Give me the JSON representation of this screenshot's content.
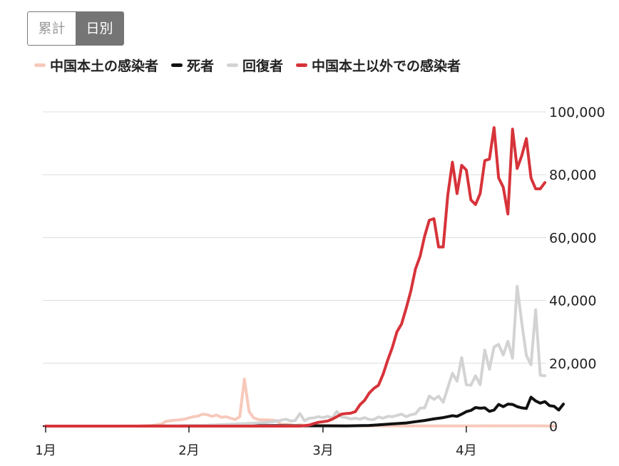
{
  "toggle": {
    "cumulative_label": "累計",
    "daily_label": "日別",
    "selected": "daily"
  },
  "legend": [
    {
      "label": "中国本土の感染者",
      "color": "#f7c9bb"
    },
    {
      "label": "死者",
      "color": "#111111"
    },
    {
      "label": "回復者",
      "color": "#d3d3d3"
    },
    {
      "label": "中国本土以外での感染者",
      "color": "#d7333a"
    }
  ],
  "chart_data": {
    "type": "line",
    "title": "",
    "xlabel": "",
    "ylabel": "",
    "ylim": [
      0,
      100000
    ],
    "yticks": [
      0,
      20000,
      40000,
      60000,
      80000,
      100000
    ],
    "ytick_labels": [
      "0",
      "20,000",
      "40,000",
      "60,000",
      "80,000",
      "100,000"
    ],
    "xticks": [
      {
        "day": 0,
        "label": "1月"
      },
      {
        "day": 31,
        "label": "2月"
      },
      {
        "day": 60,
        "label": "3月"
      },
      {
        "day": 91,
        "label": "4月"
      }
    ],
    "x_unit": "days from Jan 1",
    "grid": true,
    "series": [
      {
        "name": "中国本土の感染者",
        "color": "#f7c9bb",
        "points": [
          [
            0,
            0
          ],
          [
            15,
            0
          ],
          [
            20,
            50
          ],
          [
            23,
            200
          ],
          [
            24,
            400
          ],
          [
            25,
            600
          ],
          [
            26,
            1500
          ],
          [
            27,
            1700
          ],
          [
            28,
            1900
          ],
          [
            29,
            2000
          ],
          [
            30,
            2200
          ],
          [
            31,
            2600
          ],
          [
            32,
            3000
          ],
          [
            33,
            3200
          ],
          [
            34,
            3800
          ],
          [
            35,
            3600
          ],
          [
            36,
            3100
          ],
          [
            37,
            3500
          ],
          [
            38,
            2800
          ],
          [
            39,
            3000
          ],
          [
            40,
            2500
          ],
          [
            41,
            2100
          ],
          [
            42,
            3000
          ],
          [
            43,
            15000
          ],
          [
            44,
            4700
          ],
          [
            45,
            2600
          ],
          [
            46,
            2100
          ],
          [
            47,
            2000
          ],
          [
            48,
            2000
          ],
          [
            49,
            1900
          ],
          [
            50,
            1700
          ],
          [
            51,
            500
          ],
          [
            52,
            600
          ],
          [
            53,
            400
          ],
          [
            54,
            200
          ],
          [
            55,
            400
          ],
          [
            56,
            300
          ],
          [
            57,
            400
          ],
          [
            58,
            200
          ],
          [
            59,
            200
          ],
          [
            60,
            200
          ],
          [
            65,
            100
          ],
          [
            75,
            60
          ],
          [
            90,
            40
          ],
          [
            105,
            80
          ],
          [
            110,
            30
          ]
        ]
      },
      {
        "name": "死者",
        "color": "#111111",
        "points": [
          [
            0,
            0
          ],
          [
            20,
            0
          ],
          [
            25,
            30
          ],
          [
            30,
            60
          ],
          [
            35,
            80
          ],
          [
            40,
            100
          ],
          [
            45,
            120
          ],
          [
            50,
            130
          ],
          [
            55,
            100
          ],
          [
            60,
            80
          ],
          [
            65,
            60
          ],
          [
            70,
            200
          ],
          [
            72,
            400
          ],
          [
            75,
            700
          ],
          [
            78,
            1000
          ],
          [
            80,
            1400
          ],
          [
            82,
            1800
          ],
          [
            84,
            2300
          ],
          [
            86,
            2700
          ],
          [
            88,
            3300
          ],
          [
            89,
            3100
          ],
          [
            90,
            3800
          ],
          [
            91,
            4600
          ],
          [
            92,
            5000
          ],
          [
            93,
            5900
          ],
          [
            94,
            5700
          ],
          [
            95,
            5800
          ],
          [
            96,
            4700
          ],
          [
            97,
            5100
          ],
          [
            98,
            6900
          ],
          [
            99,
            6200
          ],
          [
            100,
            7000
          ],
          [
            101,
            6900
          ],
          [
            102,
            6200
          ],
          [
            103,
            5800
          ],
          [
            104,
            5600
          ],
          [
            105,
            9200
          ],
          [
            106,
            8000
          ],
          [
            107,
            7300
          ],
          [
            108,
            7800
          ],
          [
            109,
            6500
          ],
          [
            110,
            6300
          ],
          [
            111,
            5100
          ],
          [
            112,
            7000
          ]
        ]
      },
      {
        "name": "回復者",
        "color": "#d3d3d3",
        "points": [
          [
            0,
            0
          ],
          [
            25,
            0
          ],
          [
            30,
            200
          ],
          [
            35,
            300
          ],
          [
            40,
            600
          ],
          [
            45,
            900
          ],
          [
            48,
            1200
          ],
          [
            50,
            1600
          ],
          [
            52,
            2200
          ],
          [
            53,
            1600
          ],
          [
            54,
            1800
          ],
          [
            55,
            4000
          ],
          [
            56,
            1700
          ],
          [
            57,
            2500
          ],
          [
            58,
            2600
          ],
          [
            59,
            3000
          ],
          [
            60,
            2700
          ],
          [
            61,
            3100
          ],
          [
            62,
            2600
          ],
          [
            63,
            4700
          ],
          [
            64,
            2900
          ],
          [
            65,
            2700
          ],
          [
            66,
            2300
          ],
          [
            67,
            2500
          ],
          [
            68,
            2200
          ],
          [
            69,
            2700
          ],
          [
            70,
            2100
          ],
          [
            71,
            2100
          ],
          [
            72,
            2900
          ],
          [
            73,
            2500
          ],
          [
            74,
            3100
          ],
          [
            75,
            3000
          ],
          [
            76,
            3400
          ],
          [
            77,
            3800
          ],
          [
            78,
            3000
          ],
          [
            79,
            3600
          ],
          [
            80,
            3900
          ],
          [
            81,
            5700
          ],
          [
            82,
            5800
          ],
          [
            83,
            9600
          ],
          [
            84,
            8500
          ],
          [
            85,
            9500
          ],
          [
            86,
            7600
          ],
          [
            87,
            12200
          ],
          [
            88,
            16800
          ],
          [
            89,
            14300
          ],
          [
            90,
            21800
          ],
          [
            91,
            13200
          ],
          [
            92,
            13000
          ],
          [
            93,
            16000
          ],
          [
            94,
            13200
          ],
          [
            95,
            24200
          ],
          [
            96,
            18100
          ],
          [
            97,
            25200
          ],
          [
            98,
            26000
          ],
          [
            99,
            22600
          ],
          [
            100,
            27000
          ],
          [
            101,
            21600
          ],
          [
            102,
            44500
          ],
          [
            103,
            33000
          ],
          [
            104,
            22500
          ],
          [
            105,
            19500
          ],
          [
            106,
            37000
          ],
          [
            107,
            16200
          ],
          [
            108,
            16000
          ]
        ]
      },
      {
        "name": "中国本土以外での感染者",
        "color": "#d7333a",
        "points": [
          [
            0,
            0
          ],
          [
            55,
            0
          ],
          [
            57,
            300
          ],
          [
            58,
            800
          ],
          [
            59,
            1200
          ],
          [
            60,
            1400
          ],
          [
            61,
            1600
          ],
          [
            62,
            2200
          ],
          [
            63,
            3000
          ],
          [
            64,
            3800
          ],
          [
            65,
            4000
          ],
          [
            66,
            4100
          ],
          [
            67,
            4600
          ],
          [
            68,
            6800
          ],
          [
            69,
            8200
          ],
          [
            70,
            10500
          ],
          [
            71,
            12000
          ],
          [
            72,
            13000
          ],
          [
            73,
            16500
          ],
          [
            74,
            21000
          ],
          [
            75,
            25000
          ],
          [
            76,
            30000
          ],
          [
            77,
            32500
          ],
          [
            78,
            37500
          ],
          [
            79,
            43000
          ],
          [
            80,
            50000
          ],
          [
            81,
            54000
          ],
          [
            82,
            60500
          ],
          [
            83,
            65500
          ],
          [
            84,
            66000
          ],
          [
            85,
            57000
          ],
          [
            86,
            57000
          ],
          [
            87,
            73500
          ],
          [
            88,
            84000
          ],
          [
            89,
            74000
          ],
          [
            90,
            83000
          ],
          [
            91,
            81500
          ],
          [
            92,
            72000
          ],
          [
            93,
            70500
          ],
          [
            94,
            74000
          ],
          [
            95,
            84500
          ],
          [
            96,
            85000
          ],
          [
            97,
            95000
          ],
          [
            98,
            79000
          ],
          [
            99,
            76000
          ],
          [
            100,
            67500
          ],
          [
            101,
            94500
          ],
          [
            102,
            82000
          ],
          [
            103,
            86000
          ],
          [
            104,
            91500
          ],
          [
            105,
            79000
          ],
          [
            106,
            75500
          ],
          [
            107,
            75500
          ],
          [
            108,
            77500
          ]
        ]
      }
    ]
  }
}
